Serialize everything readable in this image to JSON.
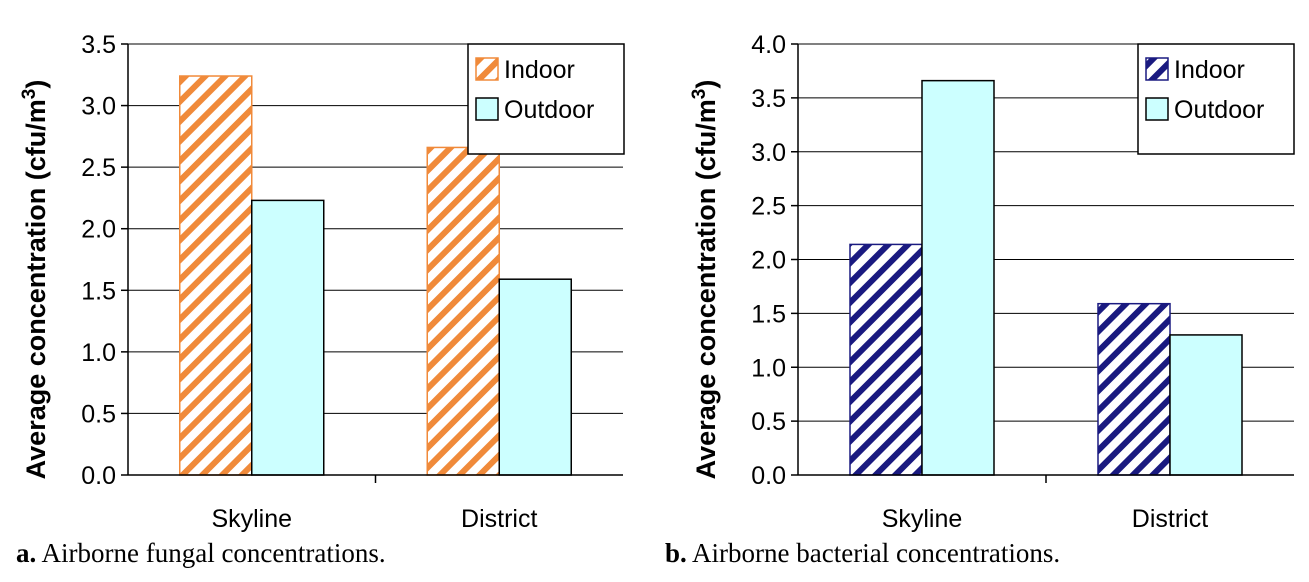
{
  "chart_data": [
    {
      "type": "bar",
      "categories": [
        "Skyline",
        "District"
      ],
      "series": [
        {
          "name": "Indoor",
          "values": [
            3.24,
            2.66
          ],
          "color": "#f08a3a",
          "pattern": "diagonal-hatch"
        },
        {
          "name": "Outdoor",
          "values": [
            2.23,
            1.59
          ],
          "color": "#ccffff",
          "pattern": "solid"
        }
      ],
      "ylabel_main": "Average concentration (cfu/m",
      "ylabel_sup": "3",
      "ylabel_close": ")",
      "ylim": [
        0,
        3.5
      ],
      "yticks": [
        "0.0",
        "0.5",
        "1.0",
        "1.5",
        "2.0",
        "2.5",
        "3.0",
        "3.5"
      ],
      "grid": true,
      "legend_position": "top-right"
    },
    {
      "type": "bar",
      "categories": [
        "Skyline",
        "District"
      ],
      "series": [
        {
          "name": "Indoor",
          "values": [
            2.14,
            1.59
          ],
          "color": "#1a1a80",
          "pattern": "diagonal-hatch"
        },
        {
          "name": "Outdoor",
          "values": [
            3.66,
            1.3
          ],
          "color": "#ccffff",
          "pattern": "solid"
        }
      ],
      "ylabel_main": "Average concentration (cfu/m",
      "ylabel_sup": "3",
      "ylabel_close": ")",
      "ylim": [
        0,
        4
      ],
      "yticks": [
        "0.0",
        "0.5",
        "1.0",
        "1.5",
        "2.0",
        "2.5",
        "3.0",
        "3.5",
        "4.0"
      ],
      "grid": true,
      "legend_position": "top-right"
    }
  ],
  "captions": [
    {
      "letter": "a.",
      "text": " Airborne fungal concentrations."
    },
    {
      "letter": "b.",
      "text": " Airborne bacterial concentrations."
    }
  ]
}
